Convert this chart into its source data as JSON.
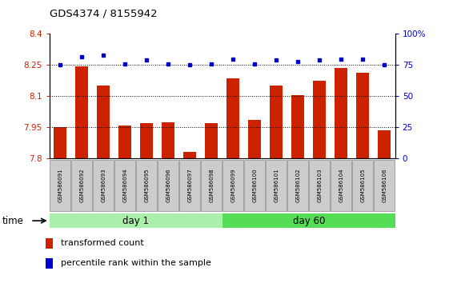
{
  "title": "GDS4374 / 8155942",
  "samples": [
    "GSM586091",
    "GSM586092",
    "GSM586093",
    "GSM586094",
    "GSM586095",
    "GSM586096",
    "GSM586097",
    "GSM586098",
    "GSM586099",
    "GSM586100",
    "GSM586101",
    "GSM586102",
    "GSM586103",
    "GSM586104",
    "GSM586105",
    "GSM586106"
  ],
  "bar_values": [
    7.95,
    8.245,
    8.15,
    7.96,
    7.97,
    7.975,
    7.83,
    7.97,
    8.185,
    7.985,
    8.15,
    8.105,
    8.175,
    8.235,
    8.215,
    7.935
  ],
  "percentile_values": [
    75,
    82,
    83,
    76,
    79,
    76,
    75,
    76,
    80,
    76,
    79,
    78,
    79,
    80,
    80,
    75
  ],
  "ylim_left": [
    7.8,
    8.4
  ],
  "ylim_right": [
    0,
    100
  ],
  "yticks_left": [
    7.8,
    7.95,
    8.1,
    8.25,
    8.4
  ],
  "yticks_right": [
    0,
    25,
    50,
    75,
    100
  ],
  "ytick_labels_left": [
    "7.8",
    "7.95",
    "8.1",
    "8.25",
    "8.4"
  ],
  "ytick_labels_right": [
    "0",
    "25",
    "50",
    "75",
    "100%"
  ],
  "hlines": [
    8.25,
    8.1,
    7.95
  ],
  "bar_color": "#cc2200",
  "percentile_color": "#0000cc",
  "bar_width": 0.6,
  "day1_label": "day 1",
  "day60_label": "day 60",
  "day1_color": "#aaf0aa",
  "day60_color": "#55dd55",
  "day1_indices": [
    0,
    1,
    2,
    3,
    4,
    5,
    6,
    7
  ],
  "day60_indices": [
    8,
    9,
    10,
    11,
    12,
    13,
    14,
    15
  ],
  "xlabel_time": "time",
  "legend_bar_label": "transformed count",
  "legend_pct_label": "percentile rank within the sample",
  "tick_label_bg": "#cccccc",
  "n_samples": 16
}
